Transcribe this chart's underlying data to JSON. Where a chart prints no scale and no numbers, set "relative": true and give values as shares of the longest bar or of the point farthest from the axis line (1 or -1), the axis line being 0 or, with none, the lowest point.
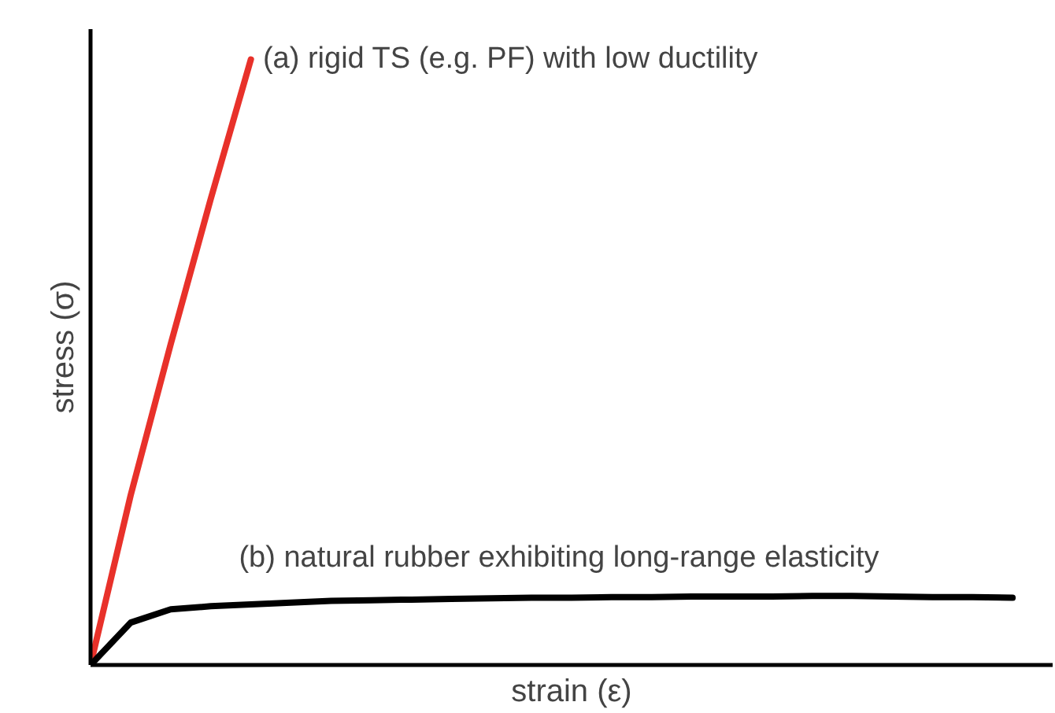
{
  "chart_data": {
    "type": "line",
    "relative": true,
    "xlabel": "strain (ε)",
    "ylabel": "stress (σ)",
    "tick_labels": false,
    "grid": false,
    "marker": "none",
    "line_style": "solid",
    "categories": [
      null,
      null,
      null,
      null,
      null,
      null,
      null,
      null,
      null,
      null,
      null,
      null,
      null,
      null,
      null,
      null,
      null,
      null,
      null,
      null,
      null,
      null,
      null,
      null
    ],
    "series": [
      {
        "color": "#e8312a",
        "values": [
          0,
          0.28,
          0.53,
          0.77,
          1.0,
          null,
          null,
          null,
          null,
          null,
          null,
          null,
          null,
          null,
          null,
          null,
          null,
          null,
          null,
          null,
          null,
          null,
          null,
          null
        ]
      },
      {
        "color": "#000000",
        "values": [
          0,
          0.07,
          0.092,
          0.097,
          0.1,
          0.103,
          0.106,
          0.107,
          0.108,
          0.109,
          0.11,
          0.111,
          0.111,
          0.112,
          0.112,
          0.113,
          0.113,
          0.113,
          0.114,
          0.114,
          0.113,
          0.112,
          0.112,
          0.111
        ]
      }
    ],
    "annotations": [
      "(a) rigid TS (e.g. PF) with low ductility",
      "(b) natural rubber exhibiting long-range elasticity"
    ]
  }
}
